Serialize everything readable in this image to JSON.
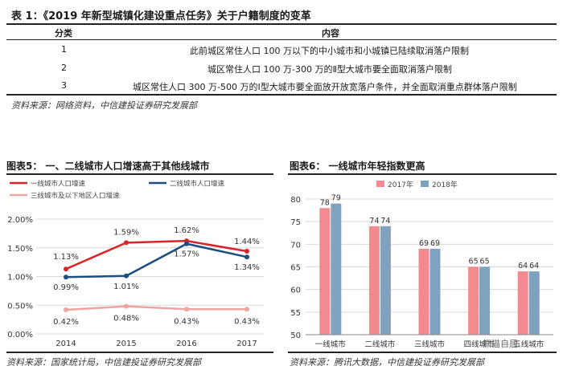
{
  "table": {
    "title": "表 1：《2019 年新型城镇化建设重点任务》关于户籍制度的变革",
    "headers": [
      "分类",
      "内容"
    ],
    "rows": [
      {
        "id": "1",
        "content": "此前城区常住人口 100 万以下的中小城市和小城镇已陆续取消落户限制"
      },
      {
        "id": "2",
        "content": "城区常住人口 100 万-300 万的Ⅱ型大城市要全面取消落户限制"
      },
      {
        "id": "3",
        "content": "城区常住人口 300 万-500 万的Ⅰ型大城市要全面放开放宽落户条件，并全面取消重点群体落户限制"
      }
    ],
    "source": "资料来源：网络资料，中信建投证券研究发展部"
  },
  "fig5": {
    "title": "图表5：  一、二线城市人口增速高于其他线城市",
    "source": "资料来源：国家统计局，中信建投证券研究发展部"
  },
  "fig6": {
    "title": "图表6：  一线城市年轻指数更高",
    "source": "资料来源：腾讯大数据，中信建投证券研究发展部",
    "watermark": "熊猫自居"
  },
  "colors": {
    "s_tier1": "#d9232b",
    "s_tier2": "#1c4e80",
    "s_tier3": "#f0a3a3",
    "bar_2017": "#f28b8f",
    "bar_2018": "#7fa2c0",
    "grid": "#d9d9d9"
  },
  "chart_data": [
    {
      "type": "line",
      "x": [
        "2014",
        "2015",
        "2016",
        "2017"
      ],
      "ylim": [
        0,
        2.0
      ],
      "yticks": [
        "0.00%",
        "0.50%",
        "1.00%",
        "1.50%",
        "2.00%"
      ],
      "series": [
        {
          "name": "一线城市人口增速",
          "values": [
            1.13,
            1.59,
            1.62,
            1.44
          ],
          "labels": [
            "1.13%",
            "1.59%",
            "1.62%",
            "1.44%"
          ]
        },
        {
          "name": "二线城市人口增速",
          "values": [
            0.99,
            1.01,
            1.57,
            1.34
          ],
          "labels": [
            "0.99%",
            "1.01%",
            "1.57%",
            "1.34%"
          ]
        },
        {
          "name": "三线城市及以下地区人口增速",
          "values": [
            0.42,
            0.48,
            0.43,
            0.43
          ],
          "labels": [
            "0.42%",
            "0.48%",
            "0.43%",
            "0.43%"
          ]
        }
      ],
      "legend": "top",
      "grid": true
    },
    {
      "type": "bar",
      "categories": [
        "一线城市",
        "二线城市",
        "三线城市",
        "四线城市",
        "五线城市"
      ],
      "series": [
        {
          "name": "2017年",
          "values": [
            78,
            74,
            69,
            65,
            64
          ]
        },
        {
          "name": "2018年",
          "values": [
            79,
            74,
            69,
            65,
            64
          ]
        }
      ],
      "ylim": [
        50,
        80
      ],
      "yticks": [
        "50",
        "55",
        "60",
        "65",
        "70",
        "75",
        "80"
      ],
      "legend": "top",
      "grid": true
    }
  ]
}
